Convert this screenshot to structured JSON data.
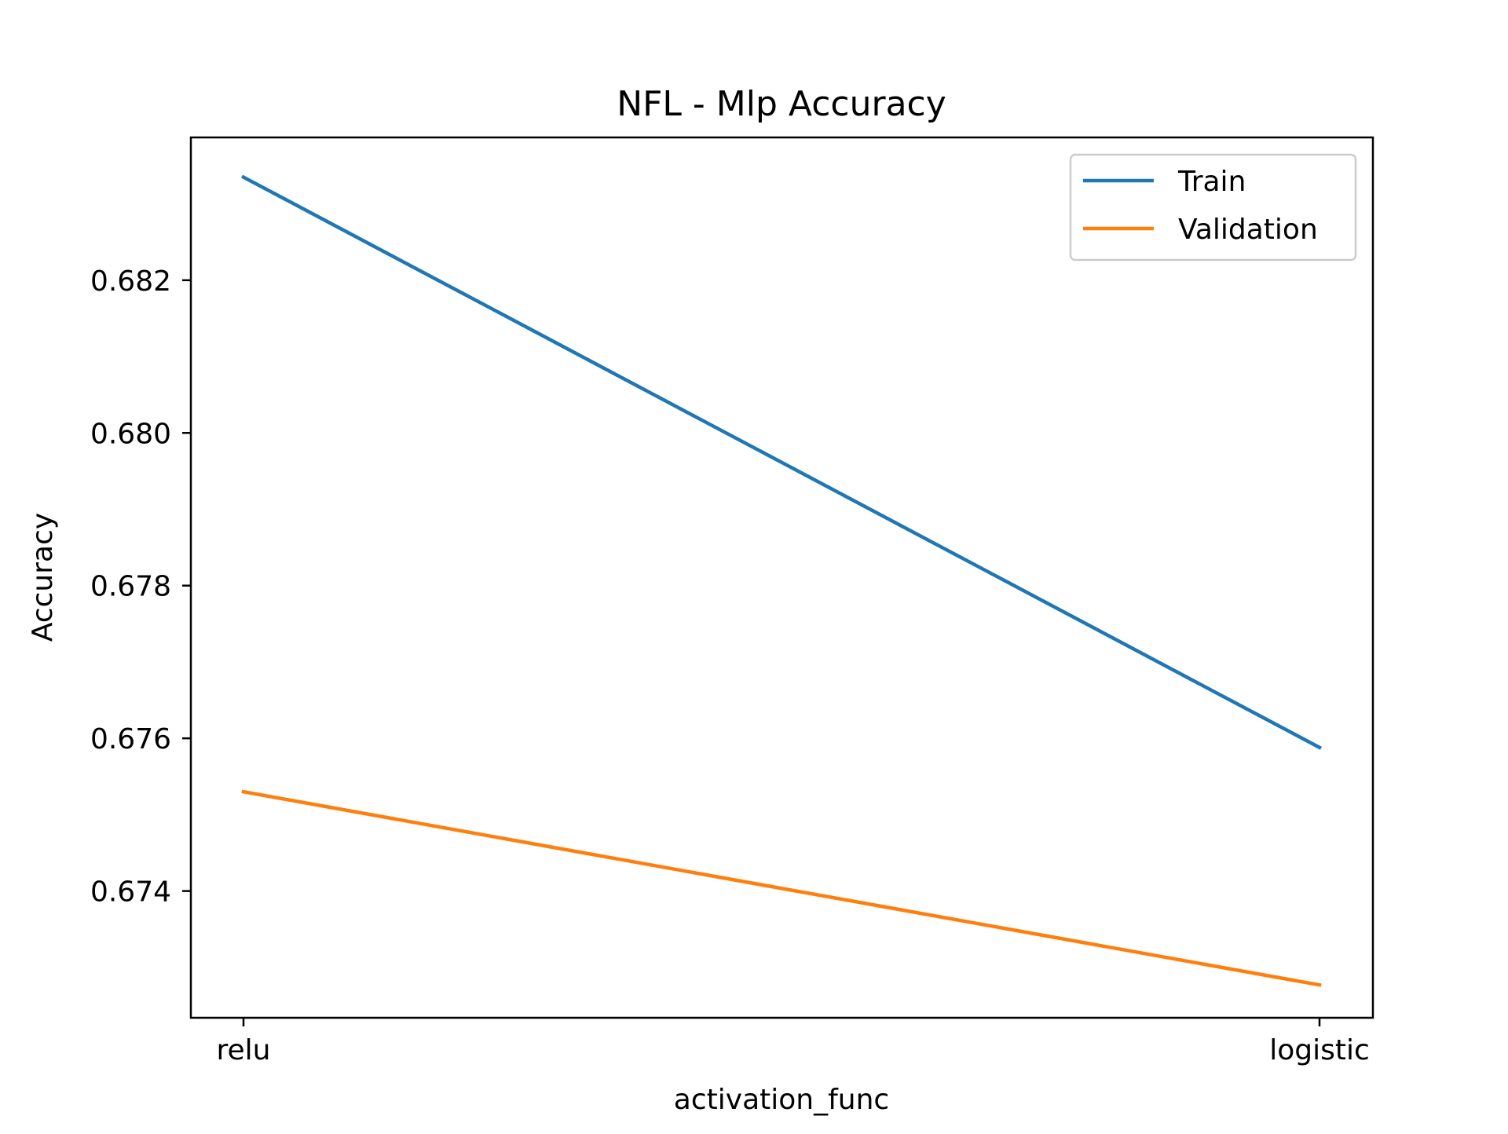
{
  "chart_data": {
    "type": "line",
    "title": "NFL - Mlp Accuracy",
    "xlabel": "activation_func",
    "ylabel": "Accuracy",
    "categories": [
      "relu",
      "logistic"
    ],
    "series": [
      {
        "name": "Train",
        "values": [
          0.68335,
          0.67588
        ],
        "color": "#1f77b4"
      },
      {
        "name": "Validation",
        "values": [
          0.6753,
          0.67277
        ],
        "color": "#ff7f0e"
      }
    ],
    "yticks": [
      0.674,
      0.676,
      0.678,
      0.68,
      0.682
    ],
    "ytick_labels": [
      "0.674",
      "0.676",
      "0.678",
      "0.680",
      "0.682"
    ],
    "ylim": [
      0.67234,
      0.68387
    ],
    "grid": false,
    "legend_position": "top-right"
  }
}
